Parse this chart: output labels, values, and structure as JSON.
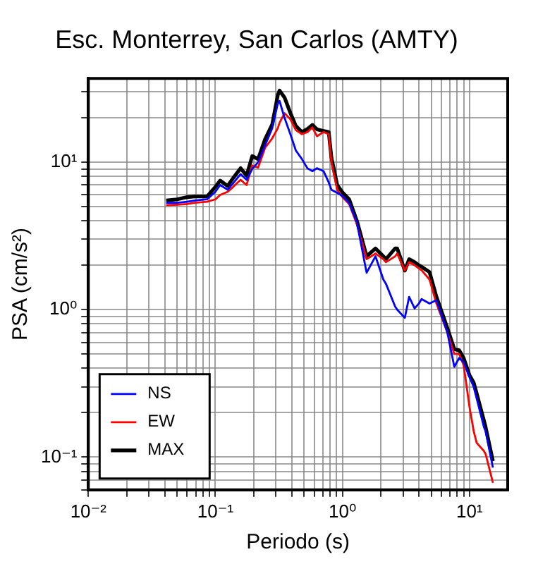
{
  "chart_data": {
    "type": "line",
    "title": "Esc. Monterrey, San Carlos (AMTY)",
    "xlabel": "Periodo (s)",
    "ylabel": "PSA (cm/s²)",
    "log": "xy",
    "grid": true,
    "legend": "bottom left",
    "marker": "none",
    "line_style": "solid",
    "xlim": [
      0.01,
      20
    ],
    "ylim": [
      0.06,
      37
    ],
    "xticks": [
      {
        "value": 0.01,
        "label": "10⁻²"
      },
      {
        "value": 0.02,
        "label": null
      },
      {
        "value": 0.03,
        "label": null
      },
      {
        "value": 0.04,
        "label": null
      },
      {
        "value": 0.05,
        "label": null
      },
      {
        "value": 0.06,
        "label": null
      },
      {
        "value": 0.07,
        "label": null
      },
      {
        "value": 0.08,
        "label": null
      },
      {
        "value": 0.09,
        "label": null
      },
      {
        "value": 0.1,
        "label": "10⁻¹"
      },
      {
        "value": 0.2,
        "label": null
      },
      {
        "value": 0.3,
        "label": null
      },
      {
        "value": 0.4,
        "label": null
      },
      {
        "value": 0.5,
        "label": null
      },
      {
        "value": 0.6,
        "label": null
      },
      {
        "value": 0.7,
        "label": null
      },
      {
        "value": 0.8,
        "label": null
      },
      {
        "value": 0.9,
        "label": null
      },
      {
        "value": 1,
        "label": "10⁰"
      },
      {
        "value": 2,
        "label": null
      },
      {
        "value": 3,
        "label": null
      },
      {
        "value": 4,
        "label": null
      },
      {
        "value": 5,
        "label": null
      },
      {
        "value": 6,
        "label": null
      },
      {
        "value": 7,
        "label": null
      },
      {
        "value": 8,
        "label": null
      },
      {
        "value": 9,
        "label": null
      },
      {
        "value": 10,
        "label": "10¹"
      }
    ],
    "yticks": [
      {
        "value": 0.06,
        "label": null
      },
      {
        "value": 0.07,
        "label": null
      },
      {
        "value": 0.08,
        "label": null
      },
      {
        "value": 0.09,
        "label": null
      },
      {
        "value": 0.1,
        "label": "10⁻¹"
      },
      {
        "value": 0.2,
        "label": null
      },
      {
        "value": 0.3,
        "label": null
      },
      {
        "value": 0.4,
        "label": null
      },
      {
        "value": 0.5,
        "label": null
      },
      {
        "value": 0.6,
        "label": null
      },
      {
        "value": 0.7,
        "label": null
      },
      {
        "value": 0.8,
        "label": null
      },
      {
        "value": 0.9,
        "label": null
      },
      {
        "value": 1,
        "label": "10⁰"
      },
      {
        "value": 2,
        "label": null
      },
      {
        "value": 3,
        "label": null
      },
      {
        "value": 4,
        "label": null
      },
      {
        "value": 5,
        "label": null
      },
      {
        "value": 6,
        "label": null
      },
      {
        "value": 7,
        "label": null
      },
      {
        "value": 8,
        "label": null
      },
      {
        "value": 9,
        "label": null
      },
      {
        "value": 10,
        "label": "10¹"
      },
      {
        "value": 20,
        "label": null
      },
      {
        "value": 30,
        "label": null
      }
    ],
    "x": [
      0.041,
      0.05,
      0.06,
      0.069,
      0.086,
      0.1,
      0.109,
      0.125,
      0.138,
      0.158,
      0.176,
      0.195,
      0.217,
      0.246,
      0.28,
      0.31,
      0.32,
      0.35,
      0.39,
      0.43,
      0.48,
      0.53,
      0.58,
      0.63,
      0.71,
      0.78,
      0.82,
      0.91,
      1.0,
      1.13,
      1.3,
      1.55,
      1.82,
      2.1,
      2.2,
      2.6,
      2.7,
      3.1,
      3.35,
      3.7,
      4.0,
      4.2,
      4.85,
      5.5,
      6.7,
      7.6,
      8.3,
      9.0,
      10,
      10.8,
      11.4,
      13,
      13.4,
      15.3
    ],
    "series": [
      {
        "name": "NS",
        "color": "#0000ff",
        "values": [
          5.3,
          5.3,
          5.4,
          5.5,
          5.6,
          6.3,
          7.0,
          6.5,
          7.2,
          8.3,
          7.6,
          9.0,
          10.0,
          13,
          17,
          25,
          26,
          20,
          15.4,
          12,
          10.5,
          9.1,
          8.7,
          9.1,
          8.7,
          7.3,
          6.5,
          6.2,
          5.9,
          5.3,
          3.9,
          1.78,
          2.3,
          1.6,
          1.5,
          1.05,
          1.0,
          0.88,
          1.22,
          1.02,
          1.1,
          1.18,
          1.1,
          1.16,
          0.7,
          0.41,
          0.47,
          0.44,
          0.35,
          0.3,
          0.25,
          0.16,
          0.15,
          0.085
        ]
      },
      {
        "name": "EW",
        "color": "#ff0000",
        "values": [
          5.1,
          5.15,
          5.2,
          5.3,
          5.4,
          5.6,
          6.0,
          6.3,
          6.8,
          7.6,
          7.0,
          9.5,
          9.2,
          12.5,
          14.5,
          17,
          18.5,
          21.5,
          19.5,
          16.5,
          15.5,
          16,
          17.2,
          15,
          16,
          15.5,
          10,
          6.5,
          5.8,
          5.2,
          3.8,
          2.2,
          2.4,
          2.2,
          2.1,
          2.3,
          2.4,
          1.84,
          2.1,
          2.0,
          1.9,
          1.85,
          1.6,
          1.1,
          0.7,
          0.5,
          0.5,
          0.42,
          0.22,
          0.15,
          0.125,
          0.11,
          0.105,
          0.067
        ]
      },
      {
        "name": "MAX",
        "color": "#000000",
        "values": [
          5.5,
          5.6,
          5.8,
          5.85,
          5.85,
          6.8,
          7.5,
          6.9,
          7.8,
          9.1,
          8.1,
          11.0,
          10.5,
          14.3,
          18,
          28.5,
          30.6,
          27.5,
          21.5,
          17.6,
          16,
          16.8,
          17.9,
          16.7,
          16.3,
          16,
          10.7,
          7,
          6.25,
          5.6,
          4.0,
          2.3,
          2.6,
          2.3,
          2.2,
          2.6,
          2.6,
          1.84,
          2.2,
          2.1,
          2.0,
          1.95,
          1.8,
          1.22,
          0.75,
          0.54,
          0.53,
          0.47,
          0.36,
          0.32,
          0.27,
          0.177,
          0.16,
          0.094
        ]
      }
    ]
  }
}
